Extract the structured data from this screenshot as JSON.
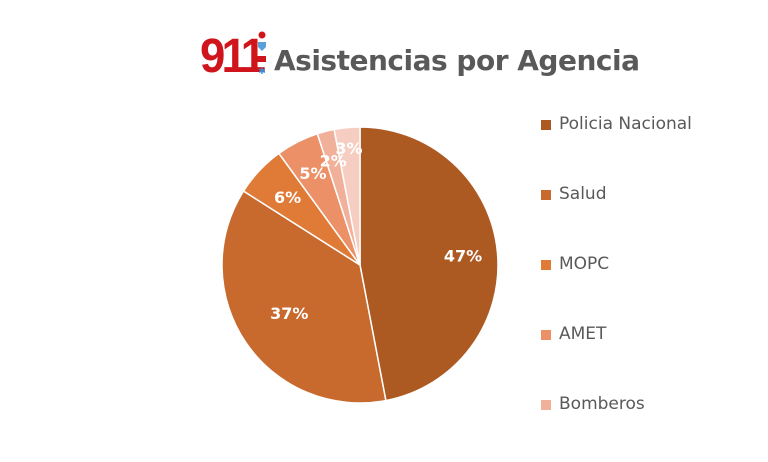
{
  "chart_data": {
    "type": "pie",
    "title": "Asistencias por Agencia",
    "logo_text": "911",
    "slices": [
      {
        "label": "Policia Nacional",
        "value": 47,
        "data_label": "47%",
        "color": "#ad5922"
      },
      {
        "label": "Salud",
        "value": 37,
        "data_label": "37%",
        "color": "#c8692d"
      },
      {
        "label": "MOPC",
        "value": 6,
        "data_label": "6%",
        "color": "#e07a37"
      },
      {
        "label": "AMET",
        "value": 5,
        "data_label": "5%",
        "color": "#ec9068"
      },
      {
        "label": "Bomberos",
        "value": 2,
        "data_label": "2%",
        "color": "#f1b09a"
      },
      {
        "value": 3,
        "data_label": "3%",
        "color": "#f6cdc1"
      }
    ],
    "legend_position": "right"
  }
}
